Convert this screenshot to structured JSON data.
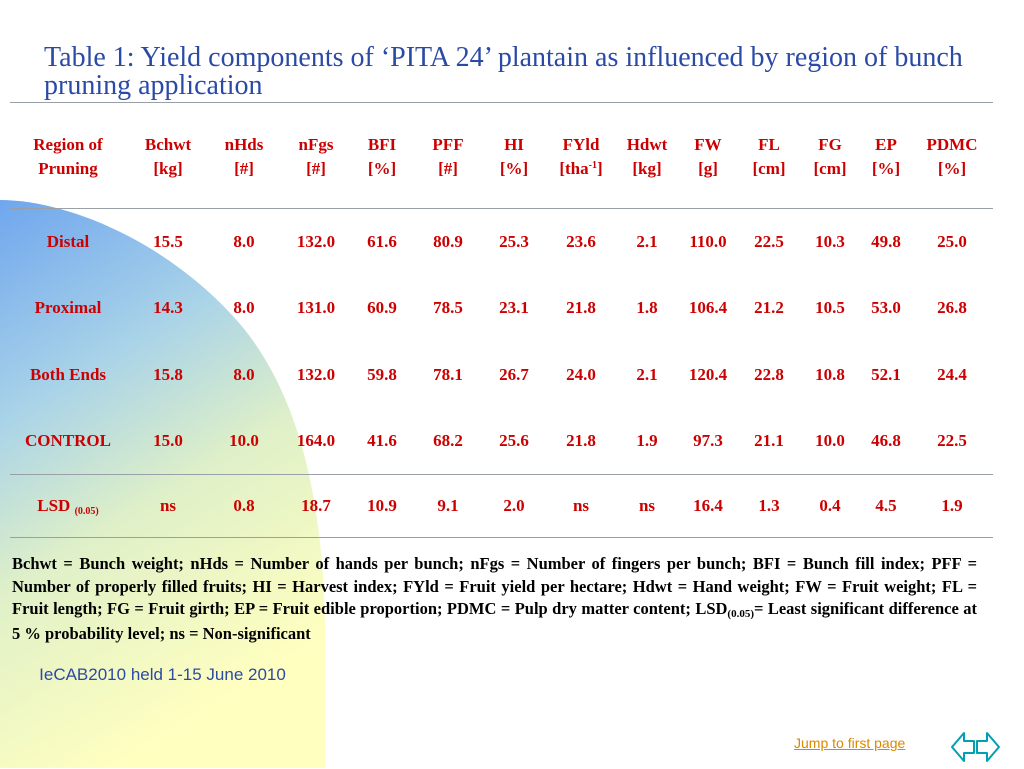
{
  "title": "Table 1: Yield components of ‘PITA 24’ plantain as influenced by region of bunch pruning application",
  "table": {
    "header": {
      "region_line1": "Region of",
      "region_line2": "Pruning",
      "cols": [
        {
          "l1": "Bchwt",
          "l2": "[kg]"
        },
        {
          "l1": "nHds",
          "l2": "[#]"
        },
        {
          "l1": "nFgs",
          "l2": "[#]"
        },
        {
          "l1": "BFI",
          "l2": "[%]"
        },
        {
          "l1": "PFF",
          "l2": "[#]"
        },
        {
          "l1": "HI",
          "l2": "[%]"
        },
        {
          "l1": "FYld",
          "l2a": "[tha",
          "l2sup": "-1",
          "l2b": "]"
        },
        {
          "l1": "Hdwt",
          "l2": "[kg]"
        },
        {
          "l1": "FW",
          "l2": "[g]"
        },
        {
          "l1": "FL",
          "l2": "[cm]"
        },
        {
          "l1": "FG",
          "l2": "[cm]"
        },
        {
          "l1": "EP",
          "l2": "[%]"
        },
        {
          "l1": "PDMC",
          "l2": "[%]"
        }
      ]
    },
    "rows": [
      {
        "label": "Distal",
        "values": [
          "15.5",
          "8.0",
          "132.0",
          "61.6",
          "80.9",
          "25.3",
          "23.6",
          "2.1",
          "110.0",
          "22.5",
          "10.3",
          "49.8",
          "25.0"
        ]
      },
      {
        "label": "Proximal",
        "values": [
          "14.3",
          "8.0",
          "131.0",
          "60.9",
          "78.5",
          "23.1",
          "21.8",
          "1.8",
          "106.4",
          "21.2",
          "10.5",
          "53.0",
          "26.8"
        ]
      },
      {
        "label": "Both Ends",
        "values": [
          "15.8",
          "8.0",
          "132.0",
          "59.8",
          "78.1",
          "26.7",
          "24.0",
          "2.1",
          "120.4",
          "22.8",
          "10.8",
          "52.1",
          "24.4"
        ]
      },
      {
        "label": "CONTROL",
        "values": [
          "15.0",
          "10.0",
          "164.0",
          "41.6",
          "68.2",
          "25.6",
          "21.8",
          "1.9",
          "97.3",
          "21.1",
          "10.0",
          "46.8",
          "22.5"
        ]
      }
    ],
    "lsd_row": {
      "label": "LSD",
      "label_sub": "(0.05)",
      "values": [
        "ns",
        "0.8",
        "18.7",
        "10.9",
        "9.1",
        "2.0",
        "ns",
        "ns",
        "16.4",
        "1.3",
        "0.4",
        "4.5",
        "1.9"
      ]
    }
  },
  "footnote": {
    "part1": "Bchwt = Bunch weight; nHds = Number of hands per bunch; nFgs = Number of fingers per bunch;  BFI = Bunch fill index;  PFF = Number of properly filled fruits; HI = Harvest index; FYld = Fruit yield per hectare; Hdwt = Hand weight; FW = Fruit weight; FL = Fruit length; FG = Fruit girth; EP = Fruit edible proportion; PDMC = Pulp dry matter content; LSD",
    "sub": "(0.05)",
    "part2": "= Least significant difference at 5 % probability level; ns = Non-significant"
  },
  "event": "IeCAB2010 held 1-15 June 2010",
  "nav": {
    "jump_label": "Jump to first page",
    "prev_icon": "arrow-left-icon",
    "next_icon": "arrow-right-icon"
  },
  "colors": {
    "title": "#2b4aa6",
    "table_text": "#cc0000",
    "footnote": "#000000",
    "link": "#d98a00",
    "nav_icon": "#00a0b4",
    "bg_blue": "#7fb0ee",
    "bg_yellow": "#ffffc0"
  }
}
